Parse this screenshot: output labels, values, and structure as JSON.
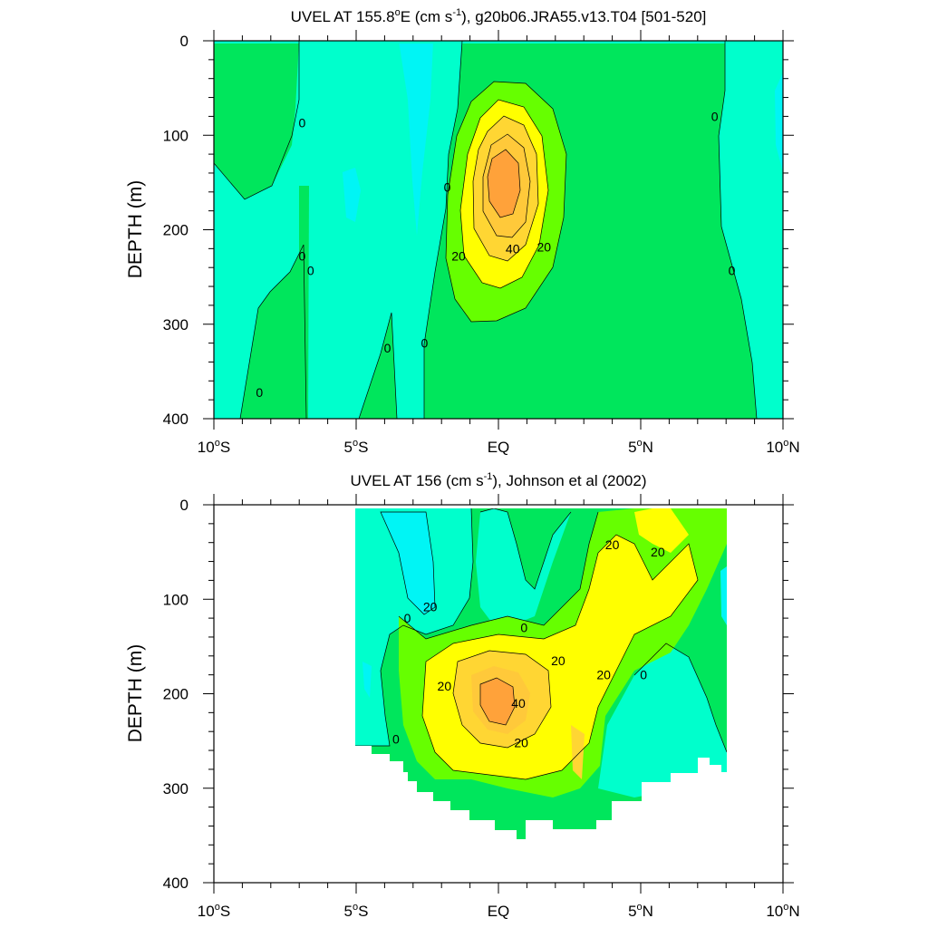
{
  "chart_data": [
    {
      "type": "heatmap",
      "plot_style": "filled-contour",
      "title_main": "UVEL AT 155.8",
      "title_deg_sup": "o",
      "title_rest1": "E (cm s",
      "title_exp_sup": "-1",
      "title_rest2": "), g20b06.JRA55.v13.T04 [501-520]",
      "xlabel": "",
      "ylabel": "DEPTH (m)",
      "xlim": [
        -10,
        10
      ],
      "ylim": [
        0,
        400
      ],
      "y_inverted": true,
      "xticks": [
        {
          "value": -10,
          "num": "10",
          "deg": "o",
          "dir": "S"
        },
        {
          "value": -5,
          "num": "5",
          "deg": "o",
          "dir": "S"
        },
        {
          "value": 0,
          "num": "EQ",
          "deg": "",
          "dir": ""
        },
        {
          "value": 5,
          "num": "5",
          "deg": "o",
          "dir": "N"
        },
        {
          "value": 10,
          "num": "10",
          "deg": "o",
          "dir": "N"
        }
      ],
      "yticks": [
        "0",
        "100",
        "200",
        "300",
        "400"
      ],
      "colors": {
        "negative_20_0": "#00f5f5",
        "neg_0": "#00ffcc",
        "pos_0_10": "#00e65c",
        "pos_10_20": "#66ff00",
        "pos_20_30": "#ffff00",
        "pos_30_40": "#ffd633",
        "pos_40_50": "#ffa23a"
      },
      "contour_labels": [
        {
          "text": "0",
          "x": -6.9,
          "y": 87
        },
        {
          "text": "0",
          "x": -6.9,
          "y": 228
        },
        {
          "text": "0",
          "x": -6.6,
          "y": 243
        },
        {
          "text": "0",
          "x": -8.4,
          "y": 372
        },
        {
          "text": "0",
          "x": -3.9,
          "y": 325
        },
        {
          "text": "0",
          "x": -2.6,
          "y": 320
        },
        {
          "text": "0",
          "x": -1.8,
          "y": 155
        },
        {
          "text": "20",
          "x": -1.4,
          "y": 228
        },
        {
          "text": "40",
          "x": 0.5,
          "y": 220
        },
        {
          "text": "20",
          "x": 1.6,
          "y": 218
        },
        {
          "text": "0",
          "x": 7.6,
          "y": 80
        },
        {
          "text": "0",
          "x": 8.2,
          "y": 243
        }
      ]
    },
    {
      "type": "heatmap",
      "plot_style": "filled-contour",
      "title_main": "UVEL AT 156 (cm s",
      "title_exp_sup": "-1",
      "title_rest2": "), Johnson et al (2002)",
      "xlabel": "",
      "ylabel": "DEPTH (m)",
      "xlim": [
        -10,
        10
      ],
      "ylim": [
        0,
        400
      ],
      "y_inverted": true,
      "data_extent_x": [
        -5,
        8
      ],
      "xticks": [
        {
          "value": -10,
          "num": "10",
          "deg": "o",
          "dir": "S"
        },
        {
          "value": -5,
          "num": "5",
          "deg": "o",
          "dir": "S"
        },
        {
          "value": 0,
          "num": "EQ",
          "deg": "",
          "dir": ""
        },
        {
          "value": 5,
          "num": "5",
          "deg": "o",
          "dir": "N"
        },
        {
          "value": 10,
          "num": "10",
          "deg": "o",
          "dir": "N"
        }
      ],
      "yticks": [
        "0",
        "100",
        "200",
        "300",
        "400"
      ],
      "contour_labels": [
        {
          "text": "20",
          "x": -2.4,
          "y": 108
        },
        {
          "text": "0",
          "x": -3.2,
          "y": 120
        },
        {
          "text": "0",
          "x": 0.9,
          "y": 130
        },
        {
          "text": "20",
          "x": 2.1,
          "y": 165
        },
        {
          "text": "20",
          "x": -1.9,
          "y": 192
        },
        {
          "text": "40",
          "x": 0.7,
          "y": 210
        },
        {
          "text": "20",
          "x": 0.8,
          "y": 252
        },
        {
          "text": "0",
          "x": -3.6,
          "y": 248
        },
        {
          "text": "20",
          "x": 3.7,
          "y": 180
        },
        {
          "text": "0",
          "x": 5.1,
          "y": 180
        },
        {
          "text": "20",
          "x": 4.0,
          "y": 42
        },
        {
          "text": "20",
          "x": 5.6,
          "y": 50
        }
      ]
    }
  ]
}
